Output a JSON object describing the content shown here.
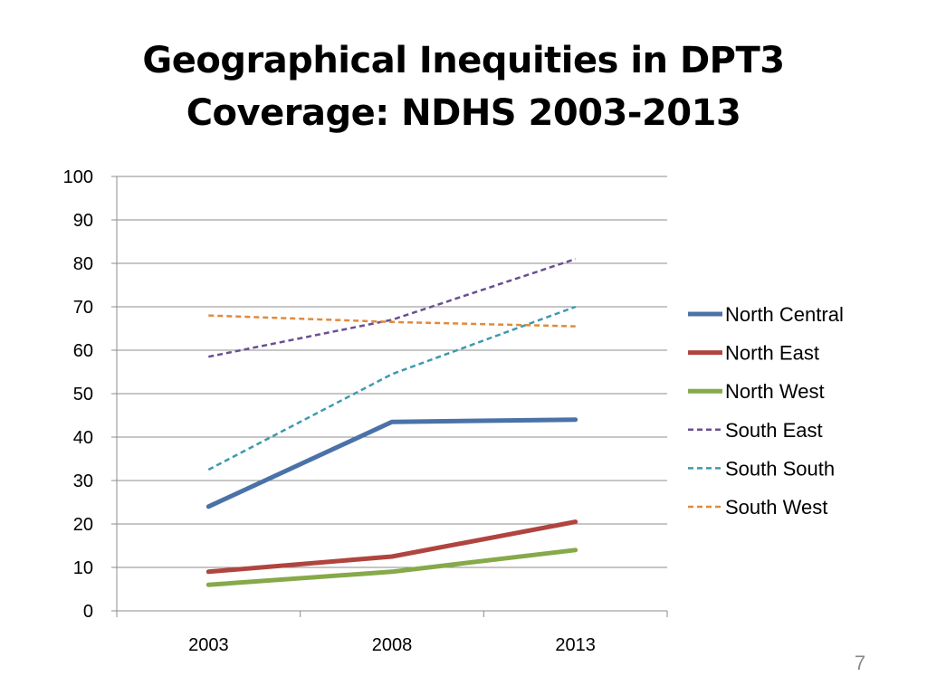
{
  "slide": {
    "title_line1": "Geographical Inequities in DPT3",
    "title_line2": "Coverage: NDHS 2003-2013",
    "page_number": "7"
  },
  "chart_data": {
    "type": "line",
    "title": "",
    "xlabel": "",
    "ylabel": "",
    "categories": [
      "2003",
      "2008",
      "2013"
    ],
    "ylim": [
      0,
      100
    ],
    "yticks": [
      0,
      10,
      20,
      30,
      40,
      50,
      60,
      70,
      80,
      90,
      100
    ],
    "grid": "horizontal",
    "legend_position": "right",
    "series": [
      {
        "name": "North Central",
        "values": [
          24,
          43.5,
          44
        ],
        "color": "#4a72a8",
        "style": "solid"
      },
      {
        "name": "North East",
        "values": [
          9,
          12.5,
          20.5
        ],
        "color": "#b0443f",
        "style": "solid"
      },
      {
        "name": "North West",
        "values": [
          6,
          9,
          14
        ],
        "color": "#86a94a",
        "style": "solid"
      },
      {
        "name": "South East",
        "values": [
          58.5,
          67,
          81
        ],
        "color": "#6a4e91",
        "style": "dashed"
      },
      {
        "name": "South South",
        "values": [
          32.5,
          54.5,
          70
        ],
        "color": "#3b9aae",
        "style": "dashed"
      },
      {
        "name": "South West",
        "values": [
          68,
          66.5,
          65.5
        ],
        "color": "#e08a3c",
        "style": "dashed"
      }
    ]
  }
}
